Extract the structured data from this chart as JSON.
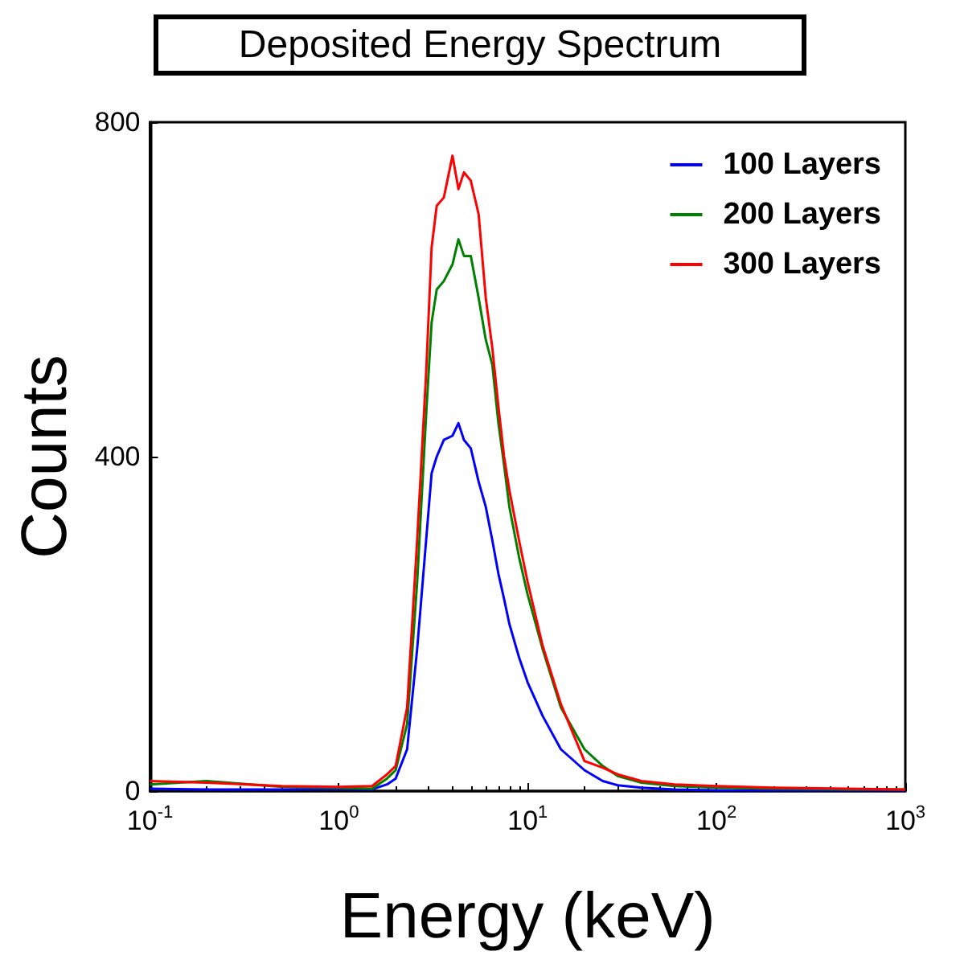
{
  "chart_data": {
    "type": "line",
    "title": "Deposited Energy Spectrum",
    "xlabel": "Energy (keV)",
    "ylabel": "Counts",
    "log": "x",
    "x": [
      0.1,
      0.2,
      0.5,
      1.0,
      1.5,
      1.8,
      2.0,
      2.3,
      2.6,
      2.9,
      3.1,
      3.3,
      3.6,
      4.0,
      4.3,
      4.6,
      5.0,
      5.5,
      6.0,
      6.5,
      7.0,
      7.5,
      8,
      9,
      10,
      12,
      15,
      20,
      25,
      30,
      40,
      60,
      100,
      200,
      500,
      1000
    ],
    "series": [
      {
        "name": "100 Layers",
        "color": "#0000ff",
        "values": [
          3,
          2,
          2,
          3,
          2,
          8,
          15,
          50,
          170,
          300,
          380,
          400,
          420,
          425,
          440,
          420,
          410,
          370,
          340,
          300,
          260,
          230,
          200,
          160,
          130,
          90,
          50,
          25,
          12,
          7,
          4,
          2,
          1,
          1,
          1,
          1
        ]
      },
      {
        "name": "200 Layers",
        "color": "#008000",
        "values": [
          8,
          12,
          5,
          4,
          3,
          15,
          25,
          80,
          250,
          450,
          560,
          600,
          610,
          630,
          660,
          640,
          640,
          590,
          540,
          510,
          440,
          390,
          340,
          280,
          235,
          170,
          100,
          50,
          30,
          18,
          10,
          6,
          4,
          3,
          2,
          2
        ]
      },
      {
        "name": "300 Layers",
        "color": "#ff0000",
        "values": [
          12,
          10,
          6,
          5,
          6,
          20,
          30,
          100,
          300,
          500,
          650,
          700,
          710,
          760,
          720,
          740,
          730,
          690,
          590,
          530,
          460,
          400,
          360,
          300,
          250,
          174,
          104,
          36,
          28,
          20,
          12,
          8,
          6,
          4,
          3,
          2
        ]
      }
    ],
    "xlim": [
      0.1,
      1000
    ],
    "ylim": [
      0,
      800
    ],
    "xticks": [
      {
        "value": 0.1,
        "label": "10$^{-1}$"
      },
      {
        "value": 1,
        "label": "10$^{0}$"
      },
      {
        "value": 10,
        "label": "10$^{1}$"
      },
      {
        "value": 100,
        "label": "10$^{2}$"
      },
      {
        "value": 1000,
        "label": "10$^{3}$"
      }
    ],
    "yticks": [
      0,
      400,
      800
    ],
    "grid": false,
    "legend": "top right",
    "marker": "none",
    "line_style": "solid"
  }
}
